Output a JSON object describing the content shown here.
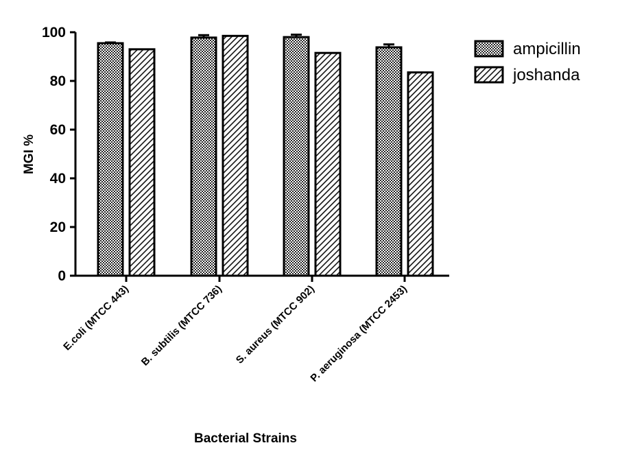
{
  "chart_data": {
    "type": "bar",
    "title": "",
    "xlabel": "Bacterial Strains",
    "ylabel": "MGI %",
    "ylim": [
      0,
      100
    ],
    "yticks": [
      0,
      20,
      40,
      60,
      80,
      100
    ],
    "categories": [
      "E.coli (MTCC 443)",
      "B. subtilis (MTCC 736)",
      "S. aureus (MTCC 902)",
      "P. aeruginosa (MTCC 2453)"
    ],
    "series": [
      {
        "name": "ampicillin",
        "values": [
          95.5,
          97.8,
          98.0,
          93.8
        ],
        "errors": [
          0.3,
          1.0,
          1.0,
          1.2
        ],
        "pattern": "checker"
      },
      {
        "name": "joshanda",
        "values": [
          93.0,
          98.5,
          91.5,
          83.5
        ],
        "errors": [
          0,
          0,
          0,
          0
        ],
        "pattern": "diagonal"
      }
    ],
    "grid": false,
    "legend_position": "top-right",
    "bar_outline_color": "#000000"
  }
}
